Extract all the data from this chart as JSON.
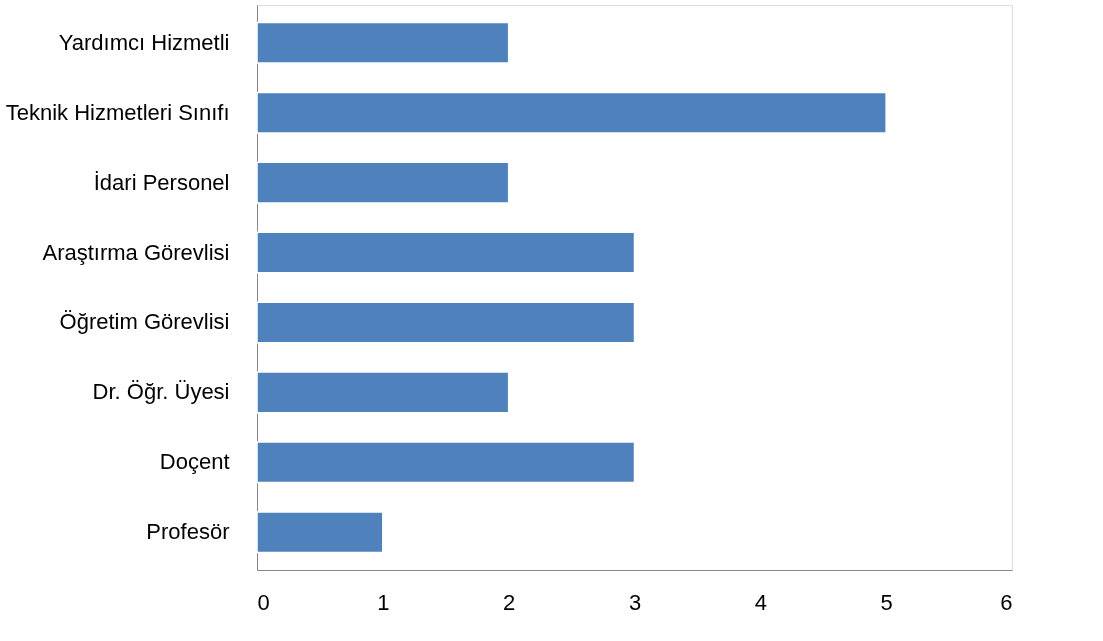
{
  "chart_data": {
    "type": "bar",
    "orientation": "horizontal",
    "categories": [
      "Yardımcı Hizmetli",
      "Teknik Hizmetleri Sınıfı",
      "İdari Personel",
      "Araştırma Görevlisi",
      "Öğretim Görevlisi",
      "Dr. Öğr. Üyesi",
      "Doçent",
      "Profesör"
    ],
    "values": [
      2,
      5,
      2,
      3,
      3,
      2,
      3,
      1
    ],
    "color": "#4f81bd",
    "xlim": [
      0,
      6
    ],
    "xticks": [
      0,
      1,
      2,
      3,
      4,
      5,
      6
    ]
  }
}
